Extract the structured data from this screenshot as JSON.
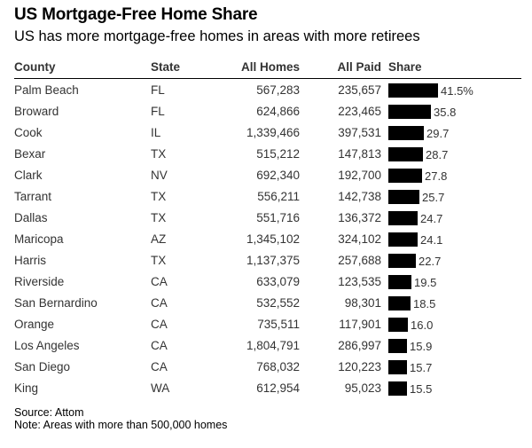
{
  "title": "US Mortgage-Free Home Share",
  "subtitle": "US has more mortgage-free homes in areas with more retirees",
  "headers": {
    "county": "County",
    "state": "State",
    "all_homes": "All Homes",
    "all_paid": "All Paid",
    "share": "Share"
  },
  "chart_data": {
    "type": "table",
    "title": "US Mortgage-Free Home Share",
    "subtitle": "US has more mortgage-free homes in areas with more retirees",
    "columns": [
      "County",
      "State",
      "All Homes",
      "All Paid",
      "Share"
    ],
    "rows": [
      {
        "county": "Palm Beach",
        "state": "FL",
        "all_homes": "567,283",
        "all_paid": "235,657",
        "share": 41.5,
        "share_label": "41.5%"
      },
      {
        "county": "Broward",
        "state": "FL",
        "all_homes": "624,866",
        "all_paid": "223,465",
        "share": 35.8,
        "share_label": "35.8"
      },
      {
        "county": "Cook",
        "state": "IL",
        "all_homes": "1,339,466",
        "all_paid": "397,531",
        "share": 29.7,
        "share_label": "29.7"
      },
      {
        "county": "Bexar",
        "state": "TX",
        "all_homes": "515,212",
        "all_paid": "147,813",
        "share": 28.7,
        "share_label": "28.7"
      },
      {
        "county": "Clark",
        "state": "NV",
        "all_homes": "692,340",
        "all_paid": "192,700",
        "share": 27.8,
        "share_label": "27.8"
      },
      {
        "county": "Tarrant",
        "state": "TX",
        "all_homes": "556,211",
        "all_paid": "142,738",
        "share": 25.7,
        "share_label": "25.7"
      },
      {
        "county": "Dallas",
        "state": "TX",
        "all_homes": "551,716",
        "all_paid": "136,372",
        "share": 24.7,
        "share_label": "24.7"
      },
      {
        "county": "Maricopa",
        "state": "AZ",
        "all_homes": "1,345,102",
        "all_paid": "324,102",
        "share": 24.1,
        "share_label": "24.1"
      },
      {
        "county": "Harris",
        "state": "TX",
        "all_homes": "1,137,375",
        "all_paid": "257,688",
        "share": 22.7,
        "share_label": "22.7"
      },
      {
        "county": "Riverside",
        "state": "CA",
        "all_homes": "633,079",
        "all_paid": "123,535",
        "share": 19.5,
        "share_label": "19.5"
      },
      {
        "county": "San Bernardino",
        "state": "CA",
        "all_homes": "532,552",
        "all_paid": "98,301",
        "share": 18.5,
        "share_label": "18.5"
      },
      {
        "county": "Orange",
        "state": "CA",
        "all_homes": "735,511",
        "all_paid": "117,901",
        "share": 16.0,
        "share_label": "16.0"
      },
      {
        "county": "Los Angeles",
        "state": "CA",
        "all_homes": "1,804,791",
        "all_paid": "286,997",
        "share": 15.9,
        "share_label": "15.9"
      },
      {
        "county": "San Diego",
        "state": "CA",
        "all_homes": "768,032",
        "all_paid": "120,223",
        "share": 15.7,
        "share_label": "15.7"
      },
      {
        "county": "King",
        "state": "WA",
        "all_homes": "612,954",
        "all_paid": "95,023",
        "share": 15.5,
        "share_label": "15.5"
      }
    ],
    "bar_color": "#000000"
  },
  "footer": {
    "source": "Source: Attom",
    "note": "Note: Areas with more than 500,000 homes"
  }
}
